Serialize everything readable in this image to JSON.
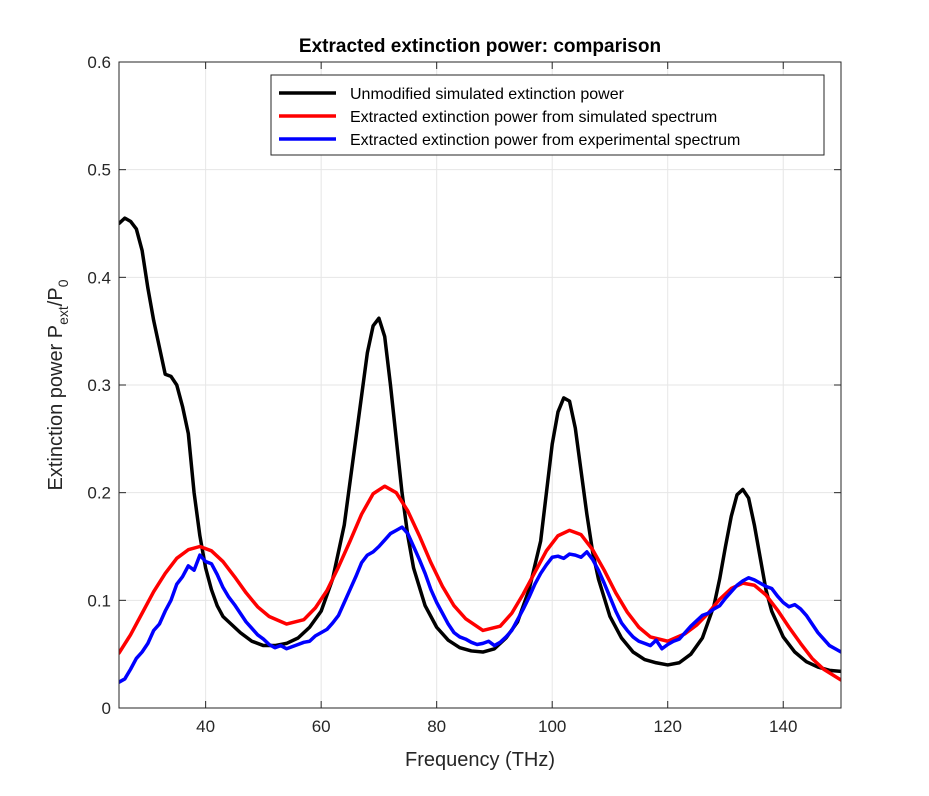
{
  "chart_data": {
    "type": "line",
    "title": "Extracted extinction power: comparison",
    "xlabel": "Frequency (THz)",
    "ylabel": {
      "main": "Extinction power P",
      "sub1": "ext",
      "slash": "/P",
      "sub2": "0"
    },
    "xlim": [
      25,
      150
    ],
    "ylim": [
      0,
      0.6
    ],
    "xticks": [
      40,
      60,
      80,
      100,
      120,
      140
    ],
    "yticks": [
      0,
      0.1,
      0.2,
      0.3,
      0.4,
      0.5,
      0.6
    ],
    "xtick_labels": [
      "40",
      "60",
      "80",
      "100",
      "120",
      "140"
    ],
    "ytick_labels": [
      "0",
      "0.1",
      "0.2",
      "0.3",
      "0.4",
      "0.5",
      "0.6"
    ],
    "grid": true,
    "legend_position": "top-right",
    "series": [
      {
        "name": "Unmodified simulated extinction power",
        "color": "#000000",
        "x": [
          25,
          26,
          27,
          28,
          29,
          30,
          31,
          32,
          33,
          34,
          35,
          36,
          37,
          38,
          39,
          40,
          41,
          42,
          43,
          44,
          45,
          46,
          48,
          50,
          52,
          54,
          56,
          58,
          60,
          62,
          64,
          66,
          67,
          68,
          69,
          70,
          71,
          72,
          73,
          74,
          75,
          76,
          78,
          80,
          82,
          84,
          86,
          88,
          90,
          92,
          94,
          96,
          98,
          99,
          100,
          101,
          102,
          103,
          104,
          105,
          106,
          107,
          108,
          110,
          112,
          114,
          116,
          118,
          120,
          122,
          124,
          126,
          128,
          129,
          130,
          131,
          132,
          133,
          134,
          135,
          136,
          137,
          138,
          140,
          142,
          144,
          146,
          148,
          150
        ],
        "y": [
          0.45,
          0.455,
          0.452,
          0.445,
          0.425,
          0.39,
          0.36,
          0.335,
          0.31,
          0.308,
          0.3,
          0.28,
          0.255,
          0.2,
          0.16,
          0.13,
          0.11,
          0.095,
          0.085,
          0.08,
          0.075,
          0.07,
          0.062,
          0.058,
          0.058,
          0.06,
          0.065,
          0.075,
          0.09,
          0.12,
          0.17,
          0.25,
          0.29,
          0.33,
          0.355,
          0.362,
          0.345,
          0.3,
          0.25,
          0.2,
          0.16,
          0.13,
          0.095,
          0.075,
          0.063,
          0.056,
          0.053,
          0.052,
          0.055,
          0.065,
          0.08,
          0.11,
          0.155,
          0.2,
          0.245,
          0.275,
          0.288,
          0.285,
          0.26,
          0.22,
          0.18,
          0.145,
          0.12,
          0.085,
          0.065,
          0.052,
          0.045,
          0.042,
          0.04,
          0.042,
          0.05,
          0.065,
          0.095,
          0.12,
          0.15,
          0.178,
          0.198,
          0.203,
          0.195,
          0.17,
          0.14,
          0.11,
          0.09,
          0.066,
          0.052,
          0.043,
          0.038,
          0.035,
          0.034
        ]
      },
      {
        "name": "Extracted extinction power from simulated spectrum",
        "color": "#ff0000",
        "x": [
          25,
          27,
          29,
          31,
          33,
          35,
          37,
          39,
          41,
          43,
          45,
          47,
          49,
          51,
          54,
          57,
          59,
          61,
          63,
          65,
          67,
          69,
          71,
          73,
          75,
          77,
          79,
          81,
          83,
          85,
          88,
          91,
          93,
          95,
          97,
          99,
          101,
          103,
          105,
          107,
          109,
          111,
          113,
          115,
          117,
          120,
          123,
          125,
          127,
          129,
          131,
          133,
          135,
          137,
          139,
          141,
          143,
          145,
          147,
          150
        ],
        "y": [
          0.051,
          0.068,
          0.088,
          0.108,
          0.125,
          0.139,
          0.147,
          0.15,
          0.146,
          0.136,
          0.122,
          0.107,
          0.094,
          0.085,
          0.078,
          0.082,
          0.093,
          0.109,
          0.131,
          0.155,
          0.18,
          0.199,
          0.206,
          0.2,
          0.183,
          0.16,
          0.135,
          0.113,
          0.095,
          0.083,
          0.072,
          0.076,
          0.088,
          0.106,
          0.126,
          0.146,
          0.16,
          0.165,
          0.161,
          0.147,
          0.128,
          0.107,
          0.089,
          0.075,
          0.066,
          0.062,
          0.069,
          0.077,
          0.088,
          0.101,
          0.111,
          0.116,
          0.114,
          0.105,
          0.091,
          0.075,
          0.06,
          0.046,
          0.036,
          0.026
        ]
      },
      {
        "name": "Extracted extinction power from experimental spectrum",
        "color": "#0000ff",
        "x": [
          25,
          26,
          27,
          28,
          29,
          30,
          31,
          32,
          33,
          34,
          35,
          36,
          37,
          38,
          39,
          40,
          41,
          42,
          43,
          44,
          45,
          46,
          47,
          48,
          49,
          50,
          51,
          52,
          53,
          54,
          55,
          56,
          57,
          58,
          59,
          60,
          61,
          62,
          63,
          64,
          65,
          66,
          67,
          68,
          69,
          70,
          71,
          72,
          73,
          74,
          75,
          76,
          77,
          78,
          79,
          80,
          81,
          82,
          83,
          84,
          85,
          86,
          87,
          88,
          89,
          90,
          91,
          92,
          93,
          94,
          95,
          96,
          97,
          98,
          99,
          100,
          101,
          102,
          103,
          104,
          105,
          106,
          107,
          108,
          109,
          110,
          111,
          112,
          113,
          114,
          115,
          116,
          117,
          118,
          119,
          120,
          121,
          122,
          123,
          124,
          125,
          126,
          127,
          128,
          129,
          130,
          131,
          132,
          133,
          134,
          135,
          136,
          137,
          138,
          139,
          140,
          141,
          142,
          143,
          144,
          145,
          146,
          147,
          148,
          149,
          150
        ],
        "y": [
          0.024,
          0.027,
          0.036,
          0.046,
          0.052,
          0.06,
          0.072,
          0.078,
          0.09,
          0.1,
          0.115,
          0.122,
          0.132,
          0.128,
          0.142,
          0.136,
          0.134,
          0.124,
          0.112,
          0.103,
          0.096,
          0.088,
          0.08,
          0.074,
          0.068,
          0.064,
          0.059,
          0.056,
          0.058,
          0.055,
          0.057,
          0.059,
          0.061,
          0.062,
          0.067,
          0.07,
          0.073,
          0.079,
          0.086,
          0.098,
          0.11,
          0.122,
          0.135,
          0.142,
          0.145,
          0.15,
          0.156,
          0.162,
          0.165,
          0.168,
          0.162,
          0.15,
          0.138,
          0.125,
          0.11,
          0.098,
          0.088,
          0.078,
          0.07,
          0.066,
          0.064,
          0.061,
          0.059,
          0.06,
          0.062,
          0.058,
          0.061,
          0.066,
          0.072,
          0.082,
          0.092,
          0.103,
          0.115,
          0.125,
          0.133,
          0.14,
          0.141,
          0.139,
          0.143,
          0.142,
          0.14,
          0.145,
          0.138,
          0.128,
          0.116,
          0.103,
          0.09,
          0.079,
          0.072,
          0.066,
          0.062,
          0.06,
          0.058,
          0.063,
          0.055,
          0.059,
          0.062,
          0.064,
          0.07,
          0.076,
          0.081,
          0.086,
          0.088,
          0.092,
          0.095,
          0.102,
          0.108,
          0.114,
          0.118,
          0.121,
          0.119,
          0.116,
          0.113,
          0.111,
          0.104,
          0.098,
          0.094,
          0.096,
          0.092,
          0.086,
          0.078,
          0.07,
          0.064,
          0.058,
          0.055,
          0.052
        ]
      }
    ]
  }
}
